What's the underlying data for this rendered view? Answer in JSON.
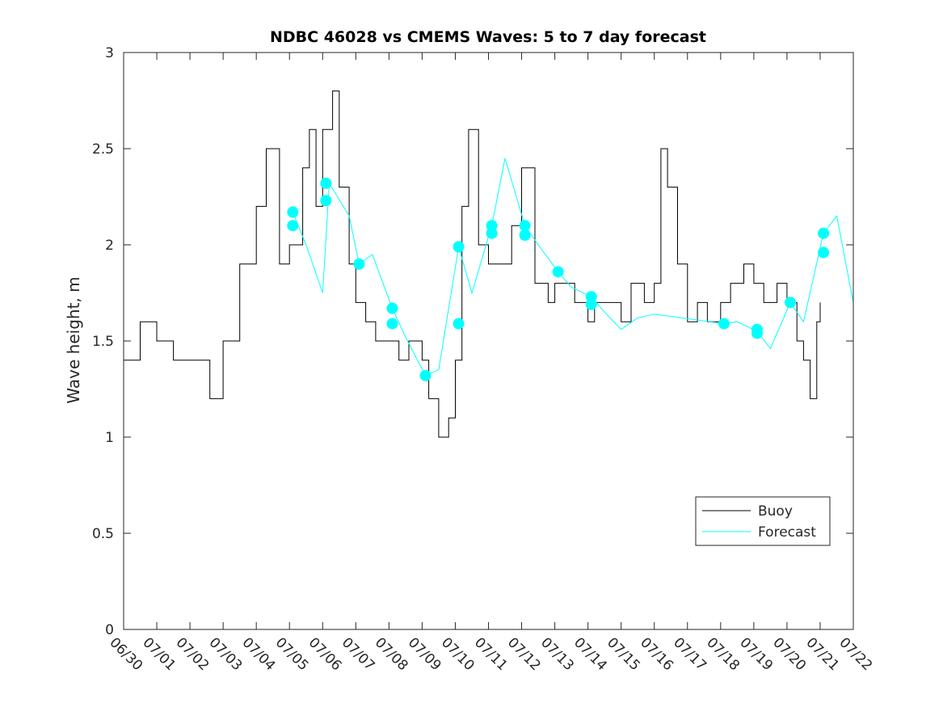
{
  "chart_data": {
    "type": "line",
    "title": "NDBC 46028 vs CMEMS Waves: 5 to 7 day forecast",
    "xlabel": "",
    "ylabel": "Wave height, m",
    "xlim": [
      "06/30",
      "07/22"
    ],
    "ylim": [
      0,
      3
    ],
    "x_ticks": [
      "06/30",
      "07/01",
      "07/02",
      "07/03",
      "07/04",
      "07/05",
      "07/06",
      "07/07",
      "07/08",
      "07/09",
      "07/10",
      "07/11",
      "07/12",
      "07/13",
      "07/14",
      "07/15",
      "07/16",
      "07/17",
      "07/18",
      "07/19",
      "07/20",
      "07/21",
      "07/22"
    ],
    "y_ticks": [
      "0",
      "0.5",
      "1",
      "1.5",
      "2",
      "2.5",
      "3"
    ],
    "grid": false,
    "legend": {
      "location": "bottom-right",
      "entries": [
        "Buoy",
        "Forecast"
      ]
    },
    "colors": {
      "buoy": "#000000",
      "forecast": "#00FFFF"
    },
    "series": [
      {
        "name": "Buoy",
        "x": [
          "06/30",
          "07/00.5",
          "07/01",
          "07/01.5",
          "07/02",
          "07/02.5",
          "07/02.6",
          "07/03",
          "07/03.5",
          "07/04",
          "07/04.3",
          "07/04.7",
          "07/05",
          "07/05.4",
          "07/05.6",
          "07/05.8",
          "07/06",
          "07/06.3",
          "07/06.5",
          "07/06.8",
          "07/07",
          "07/07.3",
          "07/07.6",
          "07/08",
          "07/08.3",
          "07/08.6",
          "07/09",
          "07/09.2",
          "07/09.5",
          "07/09.8",
          "07/10",
          "07/10.2",
          "07/10.4",
          "07/10.7",
          "07/11",
          "07/11.3",
          "07/11.7",
          "07/12",
          "07/12.4",
          "07/12.8",
          "07/13",
          "07/13.3",
          "07/13.6",
          "07/14",
          "07/14.2",
          "07/14.6",
          "07/15",
          "07/15.3",
          "07/15.7",
          "07/16",
          "07/16.2",
          "07/16.4",
          "07/16.7",
          "07/17",
          "07/17.3",
          "07/17.6",
          "07/18",
          "07/18.3",
          "07/18.7",
          "07/19",
          "07/19.3",
          "07/19.7",
          "07/20",
          "07/20.3",
          "07/20.5",
          "07/20.7",
          "07/20.9",
          "07/21"
        ],
        "y": [
          1.4,
          1.6,
          1.5,
          1.4,
          1.4,
          1.4,
          1.2,
          1.5,
          1.9,
          2.2,
          2.5,
          1.9,
          2.0,
          2.4,
          2.6,
          2.2,
          2.6,
          2.8,
          2.3,
          1.9,
          1.7,
          1.6,
          1.5,
          1.5,
          1.4,
          1.5,
          1.4,
          1.2,
          1.0,
          1.1,
          1.4,
          2.2,
          2.6,
          2.0,
          1.9,
          1.9,
          2.1,
          2.4,
          1.8,
          1.7,
          1.8,
          1.8,
          1.7,
          1.6,
          1.7,
          1.7,
          1.6,
          1.8,
          1.7,
          1.8,
          2.5,
          2.3,
          1.9,
          1.6,
          1.7,
          1.6,
          1.7,
          1.8,
          1.9,
          1.8,
          1.7,
          1.8,
          1.7,
          1.5,
          1.4,
          1.2,
          1.6,
          1.7
        ]
      },
      {
        "name": "Forecast",
        "x": [
          "07/05.1",
          "07/05.5",
          "07/06.0",
          "07/06.2",
          "07/06.8",
          "07/07.1",
          "07/07.5",
          "07/08.1",
          "07/08.5",
          "07/09.1",
          "07/09.5",
          "07/10.1",
          "07/10.5",
          "07/11.1",
          "07/11.5",
          "07/12.1",
          "07/12.5",
          "07/13.1",
          "07/13.5",
          "07/14.1",
          "07/14.5",
          "07/15.0",
          "07/15.5",
          "07/16.0",
          "07/18.1",
          "07/18.5",
          "07/19.1",
          "07/19.5",
          "07/20.1",
          "07/20.5",
          "07/21.1",
          "07/21.5",
          "07/22.0"
        ],
        "y": [
          2.17,
          2.0,
          1.75,
          2.32,
          2.15,
          1.9,
          1.95,
          1.67,
          1.52,
          1.32,
          1.35,
          1.99,
          1.75,
          2.1,
          2.45,
          2.1,
          2.0,
          1.86,
          1.78,
          1.73,
          1.65,
          1.56,
          1.62,
          1.64,
          1.59,
          1.6,
          1.55,
          1.46,
          1.7,
          1.6,
          2.06,
          2.15,
          1.7
        ]
      }
    ],
    "markers": [
      {
        "x": "07/05.1",
        "y": 2.17
      },
      {
        "x": "07/05.1",
        "y": 2.1
      },
      {
        "x": "07/06.1",
        "y": 2.32
      },
      {
        "x": "07/06.1",
        "y": 2.23
      },
      {
        "x": "07/07.1",
        "y": 1.9
      },
      {
        "x": "07/08.1",
        "y": 1.67
      },
      {
        "x": "07/08.1",
        "y": 1.59
      },
      {
        "x": "07/09.1",
        "y": 1.32
      },
      {
        "x": "07/10.1",
        "y": 1.99
      },
      {
        "x": "07/10.1",
        "y": 1.59
      },
      {
        "x": "07/11.1",
        "y": 2.1
      },
      {
        "x": "07/11.1",
        "y": 2.06
      },
      {
        "x": "07/12.1",
        "y": 2.1
      },
      {
        "x": "07/12.1",
        "y": 2.05
      },
      {
        "x": "07/13.1",
        "y": 1.86
      },
      {
        "x": "07/14.1",
        "y": 1.73
      },
      {
        "x": "07/14.1",
        "y": 1.69
      },
      {
        "x": "07/18.1",
        "y": 1.59
      },
      {
        "x": "07/19.1",
        "y": 1.56
      },
      {
        "x": "07/19.1",
        "y": 1.54
      },
      {
        "x": "07/20.1",
        "y": 1.7
      },
      {
        "x": "07/21.1",
        "y": 2.06
      },
      {
        "x": "07/21.1",
        "y": 1.96
      }
    ]
  }
}
